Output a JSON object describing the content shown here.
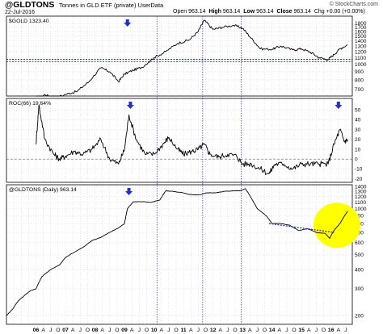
{
  "header": {
    "symbol": "@GLDTONS",
    "description": "Tonnes in GLD ETF (private)",
    "source": "UserData",
    "date": "22-Jul-2016",
    "brand": "© StockCharts.com",
    "open_label": "Open",
    "open_value": "963.14",
    "high_label": "High",
    "high_value": "963.14",
    "low_label": "Low",
    "low_value": "963.14",
    "close_label": "Close",
    "close_value": "963.14",
    "change_label": "Chg",
    "change_value": "+0.00 (+0.00%)"
  },
  "colors": {
    "price_line": "#000000",
    "marker_lines": "#2222cc",
    "arrow": "#1f2fd6",
    "highlight": "#ffff00",
    "grid": "#cccccc"
  },
  "chart_data": [
    {
      "type": "line",
      "label": "$GOLD 1323.40",
      "y_scale": "log",
      "ylim": [
        650,
        1950
      ],
      "y_ticks": [
        700,
        800,
        900,
        1000,
        1100,
        1200,
        1300,
        1400,
        1500,
        1600,
        1700,
        1800
      ],
      "horizontal_lines": [
        1040,
        1075
      ],
      "series": [
        {
          "x": [
            2006.0,
            2006.3,
            2006.6,
            2007.0,
            2007.4,
            2007.8,
            2008.2,
            2008.5,
            2008.8,
            2009.0,
            2009.3,
            2009.6,
            2010.0,
            2010.4,
            2010.8,
            2011.2,
            2011.5,
            2011.7,
            2012.0,
            2012.3,
            2012.7,
            2013.0,
            2013.3,
            2013.6,
            2014.0,
            2014.3,
            2014.7,
            2015.0,
            2015.3,
            2015.6,
            2015.9,
            2016.1,
            2016.3,
            2016.56
          ],
          "y": [
            550,
            650,
            610,
            650,
            680,
            780,
            950,
            900,
            780,
            870,
            920,
            960,
            1100,
            1200,
            1350,
            1420,
            1600,
            1880,
            1650,
            1700,
            1750,
            1680,
            1450,
            1250,
            1240,
            1300,
            1230,
            1250,
            1190,
            1100,
            1070,
            1150,
            1250,
            1323
          ]
        }
      ],
      "annotations": [
        {
          "type": "arrow_down",
          "x": 2009.1
        }
      ]
    },
    {
      "type": "line",
      "label": "ROC(66) 19.64%",
      "ylim": [
        -22,
        60
      ],
      "y_ticks": [
        -20,
        -10,
        0,
        10,
        20,
        30,
        40,
        50
      ],
      "zero_line": 0,
      "series": [
        {
          "x": [
            2006.0,
            2006.1,
            2006.3,
            2006.6,
            2006.8,
            2007.0,
            2007.3,
            2007.6,
            2007.9,
            2008.2,
            2008.5,
            2008.8,
            2009.0,
            2009.15,
            2009.4,
            2009.7,
            2010.0,
            2010.3,
            2010.5,
            2010.8,
            2011.0,
            2011.3,
            2011.5,
            2011.7,
            2011.9,
            2012.2,
            2012.5,
            2012.8,
            2013.0,
            2013.3,
            2013.6,
            2013.9,
            2014.1,
            2014.4,
            2014.7,
            2015.0,
            2015.3,
            2015.6,
            2015.9,
            2016.1,
            2016.3,
            2016.45,
            2016.56
          ],
          "y": [
            15,
            55,
            20,
            5,
            0,
            3,
            8,
            5,
            10,
            20,
            0,
            -5,
            10,
            45,
            20,
            5,
            5,
            15,
            22,
            10,
            5,
            8,
            10,
            15,
            5,
            2,
            5,
            3,
            -5,
            -5,
            -10,
            -15,
            -5,
            -5,
            -10,
            -5,
            -5,
            -5,
            -5,
            15,
            30,
            18,
            19.64
          ]
        }
      ],
      "annotations": [
        {
          "type": "arrow_down",
          "x": 2009.2
        },
        {
          "type": "arrow_down",
          "x": 2016.25
        }
      ]
    },
    {
      "type": "line",
      "label": "@GLDTONS (Daily) 963.14",
      "y_scale": "log",
      "ylim": [
        180,
        1400
      ],
      "y_ticks": [
        200,
        300,
        400,
        500,
        600,
        700,
        800,
        900,
        1000,
        1100,
        1200,
        1300,
        1400
      ],
      "categories": [
        "06",
        "A",
        "J",
        "O",
        "07",
        "A",
        "J",
        "O",
        "08",
        "A",
        "J",
        "O",
        "09",
        "A",
        "J",
        "O",
        "10",
        "A",
        "J",
        "O",
        "11",
        "A",
        "J",
        "O",
        "12",
        "A",
        "J",
        "O",
        "13",
        "A",
        "J",
        "O",
        "14",
        "A",
        "J",
        "O",
        "15",
        "A",
        "J",
        "O",
        "16",
        "A",
        "J"
      ],
      "series": [
        {
          "x": [
            2004.9,
            2005.0,
            2005.2,
            2005.4,
            2005.6,
            2005.8,
            2006.0,
            2006.2,
            2006.5,
            2006.8,
            2007.0,
            2007.3,
            2007.6,
            2007.9,
            2008.2,
            2008.5,
            2008.8,
            2009.0,
            2009.1,
            2009.3,
            2009.6,
            2009.9,
            2010.2,
            2010.4,
            2010.6,
            2010.9,
            2011.2,
            2011.5,
            2011.8,
            2012.1,
            2012.4,
            2012.7,
            2012.9,
            2013.1,
            2013.3,
            2013.5,
            2013.8,
            2014.0,
            2014.3,
            2014.6,
            2014.9,
            2015.2,
            2015.5,
            2015.8,
            2015.95,
            2016.1,
            2016.3,
            2016.56
          ],
          "y": [
            190,
            200,
            220,
            250,
            270,
            290,
            300,
            360,
            400,
            430,
            480,
            520,
            560,
            620,
            650,
            700,
            750,
            800,
            1000,
            1110,
            1110,
            1100,
            1140,
            1310,
            1300,
            1280,
            1240,
            1230,
            1270,
            1270,
            1300,
            1310,
            1310,
            1350,
            1170,
            1000,
            900,
            800,
            800,
            780,
            720,
            740,
            700,
            690,
            640,
            720,
            800,
            963.14
          ]
        }
      ],
      "trendline": {
        "x": [
          2013.9,
          2016.1
        ],
        "y": [
          800,
          700
        ]
      },
      "annotations": [
        {
          "type": "arrow_down",
          "x": 2009.15
        },
        {
          "type": "highlight_circle",
          "x": 2016.2,
          "y": 780
        }
      ]
    }
  ],
  "x_axis": {
    "labels": [
      "06",
      "A",
      "J",
      "O",
      "07",
      "A",
      "J",
      "O",
      "08",
      "A",
      "J",
      "O",
      "09",
      "A",
      "J",
      "O",
      "10",
      "A",
      "J",
      "O",
      "11",
      "A",
      "J",
      "O",
      "12",
      "A",
      "J",
      "O",
      "13",
      "A",
      "J",
      "O",
      "14",
      "A",
      "J",
      "O",
      "15",
      "A",
      "J",
      "O",
      "16",
      "A",
      "J"
    ],
    "year_labels": [
      "06",
      "07",
      "08",
      "09",
      "10",
      "11",
      "12",
      "13",
      "14",
      "15",
      "16"
    ],
    "vertical_markers": [
      2010.1,
      2011.65,
      2012.95
    ]
  }
}
